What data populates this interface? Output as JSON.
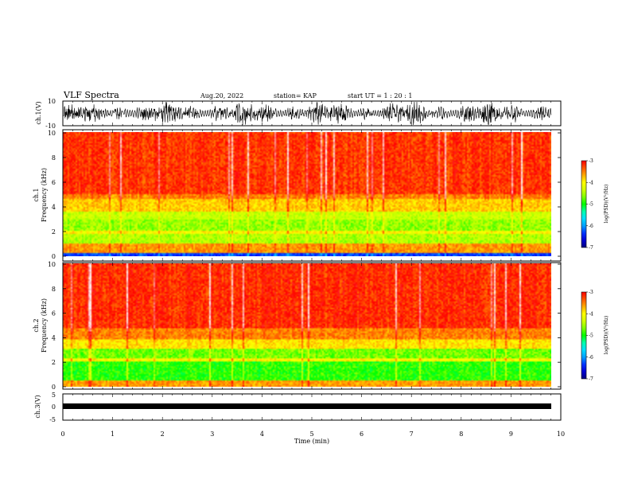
{
  "header": {
    "title": "VLF Spectra",
    "date": "Aug.20, 2022",
    "station": "station= KAP",
    "start": "start  UT =   1 : 20 : 1"
  },
  "colors": {
    "colormap": [
      "#000080",
      "#0000ff",
      "#00a0ff",
      "#00ffff",
      "#00ff00",
      "#c0ff00",
      "#ffff00",
      "#ff8000",
      "#ff0000",
      "#ff8080",
      "#ffffff"
    ],
    "trace": "#000000"
  },
  "chart_data": [
    {
      "type": "line",
      "panel": "ch1-waveform",
      "ylabel": "ch.1(V)",
      "ylim": [
        -10,
        10
      ],
      "yticks": [
        "10",
        "-10"
      ],
      "xlim": [
        0,
        10
      ],
      "description_values": "dense noise-like waveform spanning about -10 to 10 V"
    },
    {
      "type": "heatmap",
      "panel": "ch1-spectrogram",
      "ylabel": [
        "ch.1",
        "Frequency  (kHz)"
      ],
      "ylim": [
        0,
        10
      ],
      "yticks": [
        "0",
        "2",
        "4",
        "6",
        "8",
        "10"
      ],
      "xlim": [
        0,
        9.83
      ],
      "colorbar": {
        "label": "log(PSD)(V²/Hz)",
        "range": [
          -7,
          -3
        ],
        "ticks": [
          "-3",
          "-4",
          "-5",
          "-6",
          "-7"
        ]
      },
      "bands_khz": [
        {
          "from": 0.0,
          "to": 0.3,
          "level": -6.3
        },
        {
          "from": 0.3,
          "to": 1.0,
          "level": -3.6
        },
        {
          "from": 1.0,
          "to": 1.8,
          "level": -4.5
        },
        {
          "from": 1.8,
          "to": 2.1,
          "level": -4.0
        },
        {
          "from": 2.1,
          "to": 3.0,
          "level": -4.6
        },
        {
          "from": 3.0,
          "to": 3.6,
          "level": -4.4
        },
        {
          "from": 3.6,
          "to": 4.6,
          "level": -3.8
        },
        {
          "from": 4.6,
          "to": 5.0,
          "level": -3.5
        },
        {
          "from": 5.0,
          "to": 10.0,
          "level": -3.2
        }
      ]
    },
    {
      "type": "heatmap",
      "panel": "ch2-spectrogram",
      "ylabel": [
        "ch.2",
        "Frequency  (kHz)"
      ],
      "ylim": [
        0,
        10
      ],
      "yticks": [
        "0",
        "2",
        "4",
        "6",
        "8",
        "10"
      ],
      "xlim": [
        0,
        9.83
      ],
      "colorbar": {
        "label": "log(PSD)(V²/Hz)",
        "range": [
          -7,
          -3
        ],
        "ticks": [
          "-3",
          "-4",
          "-5",
          "-6",
          "-7"
        ]
      },
      "bands_khz": [
        {
          "from": 0.0,
          "to": 0.5,
          "level": -3.6
        },
        {
          "from": 0.5,
          "to": 2.0,
          "level": -4.9
        },
        {
          "from": 2.0,
          "to": 2.3,
          "level": -4.0
        },
        {
          "from": 2.3,
          "to": 3.1,
          "level": -4.7
        },
        {
          "from": 3.1,
          "to": 3.8,
          "level": -3.9
        },
        {
          "from": 3.8,
          "to": 4.8,
          "level": -3.5
        },
        {
          "from": 4.8,
          "to": 10.0,
          "level": -3.15
        }
      ]
    },
    {
      "type": "line",
      "panel": "ch3-waveform",
      "ylabel": "ch.3(V)",
      "ylim": [
        -5,
        5
      ],
      "yticks": [
        "5",
        "0",
        "-5"
      ],
      "xlim": [
        0,
        10
      ],
      "level_v": 0,
      "xlabel": "Time  (min)",
      "xticks": [
        "0",
        "1",
        "2",
        "3",
        "4",
        "5",
        "6",
        "7",
        "8",
        "9",
        "10"
      ]
    }
  ]
}
